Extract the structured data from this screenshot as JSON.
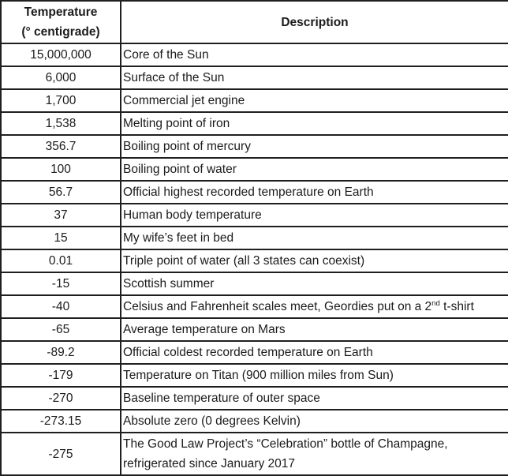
{
  "colors": {
    "border": "#1f1f1f",
    "text": "#1b1b1b",
    "background": "#ffffff"
  },
  "table": {
    "header": {
      "temperature_line1": "Temperature",
      "temperature_line2": "(° centigrade)",
      "description": "Description"
    },
    "rows": [
      {
        "temperature": "15,000,000",
        "description": [
          {
            "text": "Core of the Sun"
          }
        ]
      },
      {
        "temperature": "6,000",
        "description": [
          {
            "text": "Surface of the Sun"
          }
        ]
      },
      {
        "temperature": "1,700",
        "description": [
          {
            "text": "Commercial jet engine"
          }
        ]
      },
      {
        "temperature": "1,538",
        "description": [
          {
            "text": "Melting point of iron"
          }
        ]
      },
      {
        "temperature": "356.7",
        "description": [
          {
            "text": "Boiling point of mercury"
          }
        ]
      },
      {
        "temperature": "100",
        "description": [
          {
            "text": "Boiling point of water"
          }
        ]
      },
      {
        "temperature": "56.7",
        "description": [
          {
            "text": "Official highest recorded temperature on Earth"
          }
        ]
      },
      {
        "temperature": "37",
        "description": [
          {
            "text": "Human body temperature"
          }
        ]
      },
      {
        "temperature": "15",
        "description": [
          {
            "text": "My wife’s feet in bed"
          }
        ]
      },
      {
        "temperature": "0.01",
        "description": [
          {
            "text": "Triple point of water (all 3 states can coexist)"
          }
        ]
      },
      {
        "temperature": "-15",
        "description": [
          {
            "text": "Scottish summer"
          }
        ]
      },
      {
        "temperature": "-40",
        "description": [
          {
            "text": "Celsius and Fahrenheit scales meet, Geordies put on a 2"
          },
          {
            "text": "nd",
            "sup": true
          },
          {
            "text": " t-shirt"
          }
        ]
      },
      {
        "temperature": "-65",
        "description": [
          {
            "text": "Average temperature on Mars"
          }
        ]
      },
      {
        "temperature": "-89.2",
        "description": [
          {
            "text": "Official coldest recorded temperature on Earth"
          }
        ]
      },
      {
        "temperature": "-179",
        "description": [
          {
            "text": "Temperature on Titan (900 million miles from Sun)"
          }
        ]
      },
      {
        "temperature": "-270",
        "description": [
          {
            "text": "Baseline temperature of outer space"
          }
        ]
      },
      {
        "temperature": "-273.15",
        "description": [
          {
            "text": "Absolute zero (0 degrees Kelvin)"
          }
        ]
      },
      {
        "temperature": "-275",
        "description": [
          {
            "text": "The Good Law Project’s “Celebration” bottle of Champagne, refrigerated since January 2017"
          }
        ]
      }
    ]
  }
}
